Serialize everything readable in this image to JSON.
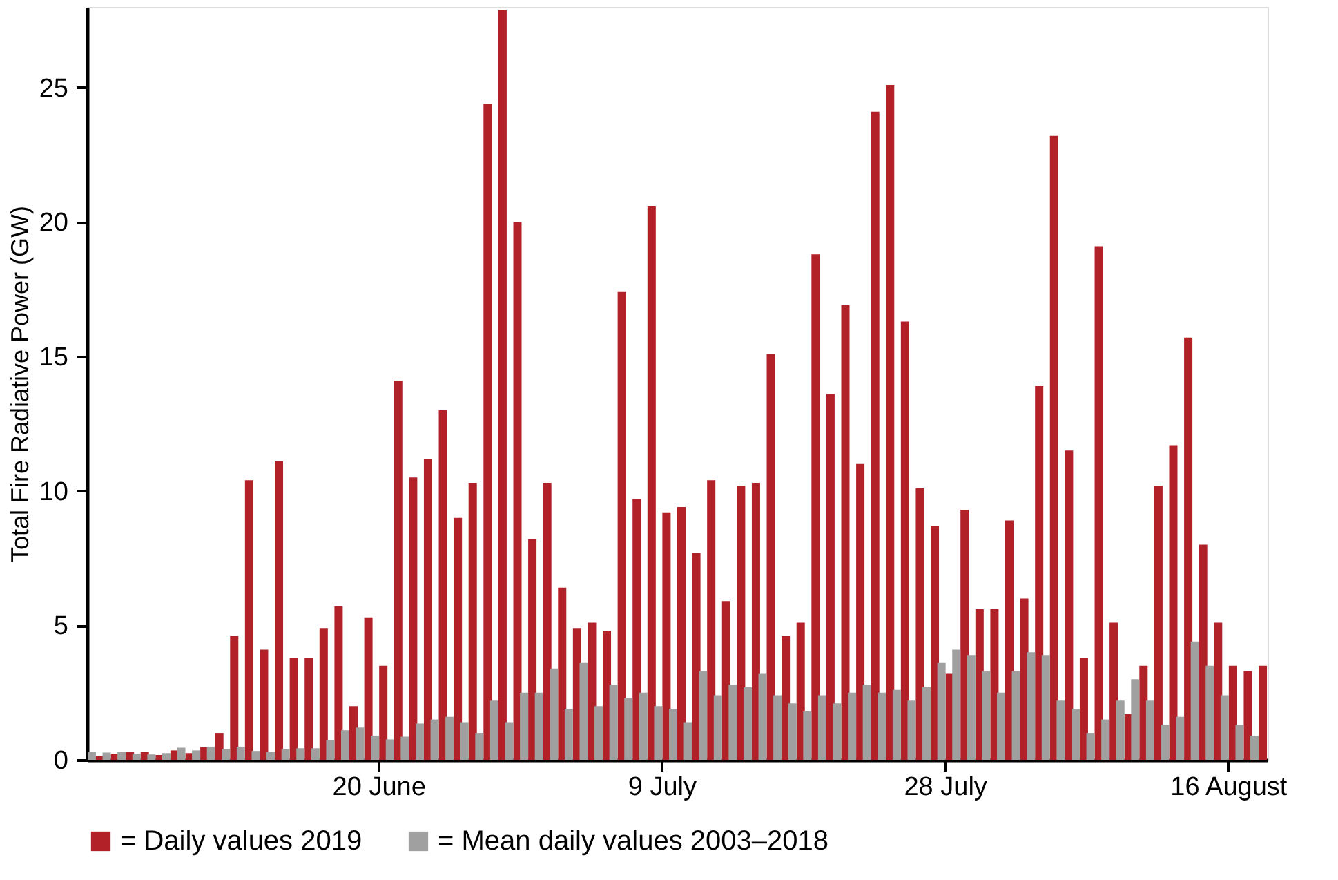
{
  "chart_data": {
    "type": "bar",
    "ylabel": "Total Fire Radiative Power (GW)",
    "categories": [
      null,
      null,
      null,
      null,
      null,
      null,
      null,
      null,
      null,
      null,
      null,
      null,
      null,
      null,
      null,
      null,
      null,
      null,
      null,
      "20 June",
      null,
      null,
      null,
      null,
      null,
      null,
      null,
      null,
      null,
      null,
      null,
      null,
      null,
      null,
      null,
      null,
      null,
      null,
      "9 July",
      null,
      null,
      null,
      null,
      null,
      null,
      null,
      null,
      null,
      null,
      null,
      null,
      null,
      null,
      null,
      null,
      null,
      null,
      "28 July",
      null,
      null,
      null,
      null,
      null,
      null,
      null,
      null,
      null,
      null,
      null,
      null,
      null,
      null,
      null,
      null,
      null,
      null,
      "16 August",
      null,
      null
    ],
    "series": [
      {
        "name": "= Daily values 2019",
        "color": "#b22028",
        "values": [
          0.14,
          0.23,
          0.3,
          0.3,
          0.18,
          0.35,
          0.25,
          0.47,
          1.0,
          4.6,
          10.4,
          4.1,
          11.1,
          3.8,
          3.8,
          4.9,
          5.7,
          2.0,
          5.3,
          3.5,
          14.1,
          10.5,
          11.2,
          13.0,
          9.0,
          10.3,
          24.4,
          27.9,
          20.0,
          8.2,
          10.3,
          6.4,
          4.9,
          5.1,
          4.8,
          17.4,
          9.7,
          20.6,
          9.2,
          9.4,
          7.7,
          10.4,
          5.9,
          10.2,
          10.3,
          15.1,
          4.6,
          5.1,
          18.8,
          13.6,
          16.9,
          11.0,
          24.1,
          25.1,
          16.3,
          10.1,
          8.7,
          3.2,
          9.3,
          5.6,
          5.6,
          8.9,
          6.0,
          13.9,
          23.2,
          11.5,
          3.8,
          19.1,
          5.1,
          1.7,
          3.5,
          10.2,
          11.7,
          15.7,
          8.0,
          5.1,
          3.5,
          3.3,
          3.5
        ]
      },
      {
        "name": "= Mean daily values 2003–2018",
        "color": "#a0a0a0",
        "values": [
          0.3,
          0.27,
          0.3,
          0.23,
          0.2,
          0.25,
          0.45,
          0.35,
          0.49,
          0.4,
          0.49,
          0.33,
          0.3,
          0.4,
          0.43,
          0.43,
          0.72,
          1.1,
          1.2,
          0.9,
          0.76,
          0.86,
          1.35,
          1.5,
          1.6,
          1.4,
          1.0,
          2.2,
          1.4,
          2.5,
          2.5,
          3.4,
          1.9,
          3.6,
          2.0,
          2.8,
          2.3,
          2.5,
          2.0,
          1.9,
          1.4,
          3.3,
          2.4,
          2.8,
          2.7,
          3.2,
          2.4,
          2.1,
          1.8,
          2.4,
          2.1,
          2.5,
          2.8,
          2.5,
          2.6,
          2.2,
          2.7,
          3.6,
          4.1,
          3.9,
          3.3,
          2.5,
          3.3,
          4.0,
          3.9,
          2.2,
          1.9,
          1.0,
          1.5,
          2.2,
          3.0,
          2.2,
          1.3,
          1.6,
          4.4,
          3.5,
          2.4,
          1.3,
          0.9
        ]
      }
    ],
    "ylim": [
      0,
      28
    ],
    "yticks": [
      0,
      5,
      10,
      15,
      20,
      25
    ],
    "grid": false,
    "legend": "bottom"
  }
}
